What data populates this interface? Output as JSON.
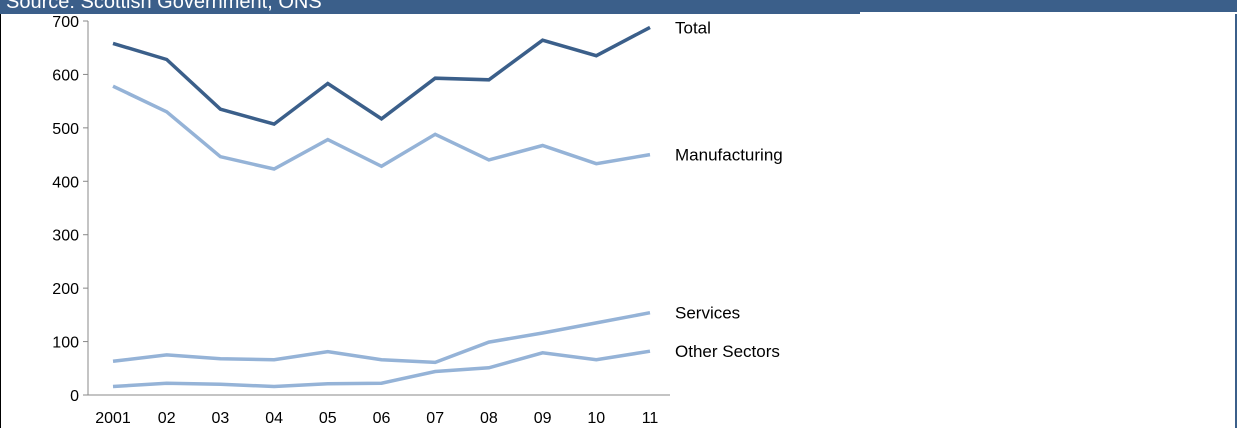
{
  "source_banner": {
    "text": "Source: Scottish Government, ONS",
    "color": "#3b5f8a"
  },
  "chart_data": {
    "type": "line",
    "title": "",
    "xlabel": "",
    "ylabel": "",
    "categories": [
      "2001",
      "02",
      "03",
      "04",
      "05",
      "06",
      "07",
      "08",
      "09",
      "10",
      "11"
    ],
    "ylim": [
      0,
      700
    ],
    "yticks": [
      0,
      100,
      200,
      300,
      400,
      500,
      600,
      700
    ],
    "grid": false,
    "legend": "inline-right",
    "series": [
      {
        "name": "Total",
        "color": "#3b5f8a",
        "values": [
          658,
          628,
          535,
          507,
          583,
          517,
          593,
          590,
          664,
          635,
          688
        ]
      },
      {
        "name": "Manufacturing",
        "color": "#95b3d7",
        "values": [
          578,
          530,
          446,
          423,
          478,
          428,
          488,
          440,
          467,
          433,
          450
        ]
      },
      {
        "name": "Services",
        "color": "#95b3d7",
        "values": [
          63,
          75,
          68,
          66,
          81,
          66,
          61,
          99,
          116,
          135,
          154
        ]
      },
      {
        "name": "Other Sectors",
        "color": "#95b3d7",
        "values": [
          16,
          22,
          20,
          16,
          21,
          22,
          44,
          51,
          79,
          66,
          82
        ]
      }
    ]
  }
}
